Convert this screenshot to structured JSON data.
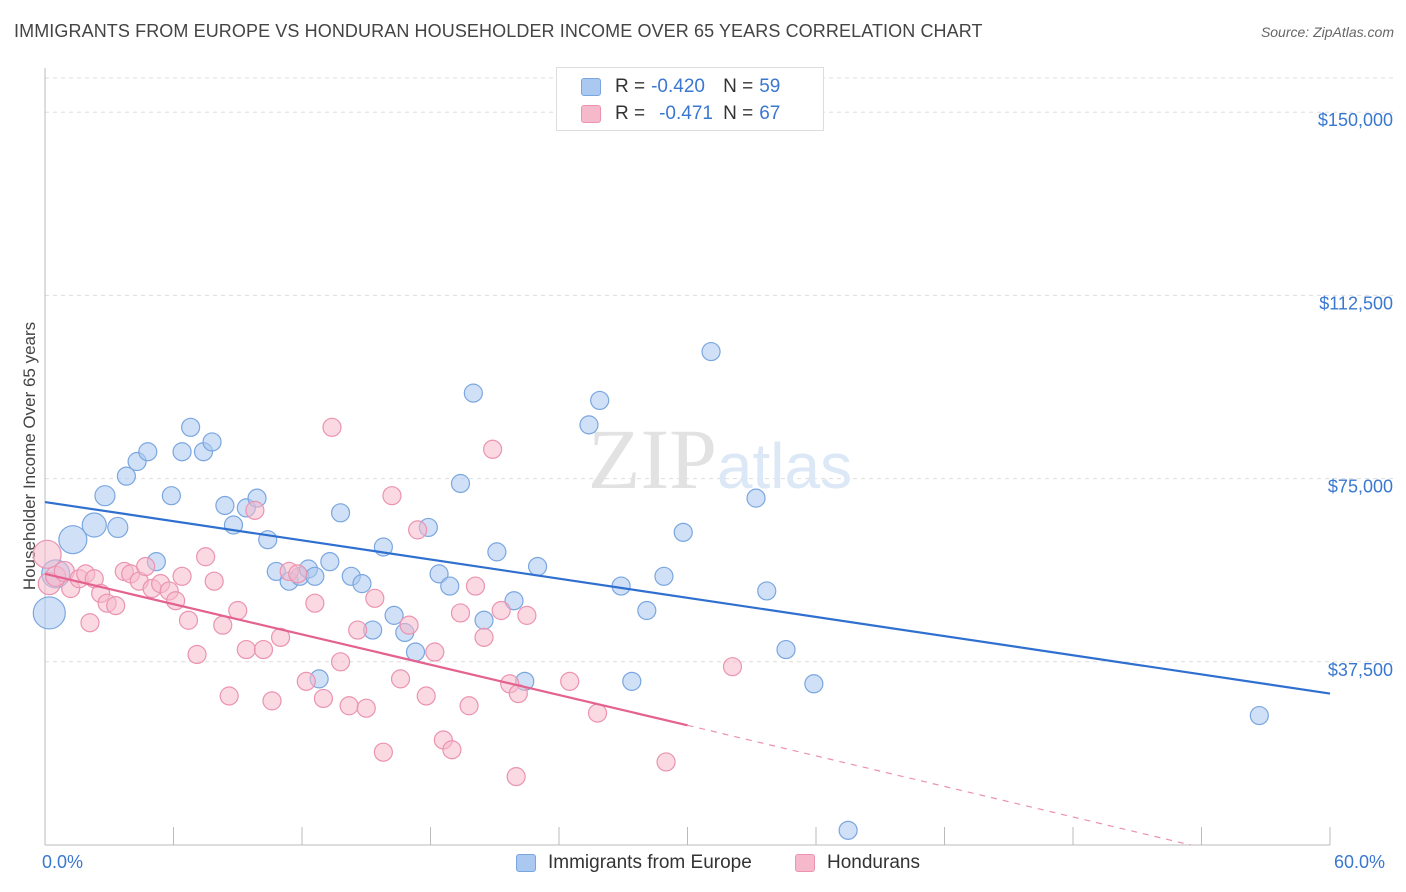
{
  "chart_title": "IMMIGRANTS FROM EUROPE VS HONDURAN HOUSEHOLDER INCOME OVER 65 YEARS CORRELATION CHART",
  "source_text": "Source: ZipAtlas.com",
  "watermark": "ZIPatlas",
  "legend_stats": [
    {
      "r_label": "R =",
      "r_value": "-0.420",
      "n_label": "N =",
      "n_value": "59"
    },
    {
      "r_label": "R =",
      "r_value": "-0.471",
      "n_label": "N =",
      "n_value": "67"
    }
  ],
  "colors": {
    "europe_fill": "#aac8f0",
    "europe_stroke": "#7aa6e0",
    "europe_line": "#2f6fcf",
    "honduran_fill": "#f6b9cc",
    "honduran_stroke": "#eb93b0",
    "honduran_line": "#e4628f",
    "tick_label": "#3a78d0",
    "grid": "#dddddd"
  },
  "chart_data": {
    "type": "scatter",
    "title": "IMMIGRANTS FROM EUROPE VS HONDURAN HOUSEHOLDER INCOME OVER 65 YEARS CORRELATION CHART",
    "xlabel": "",
    "ylabel": "Householder Income Over 65 years",
    "xlim": [
      0,
      60
    ],
    "ylim": [
      0,
      157000
    ],
    "x_tick_labels": [
      "0.0%",
      "60.0%"
    ],
    "y_ticks": [
      37500,
      75000,
      112500,
      150000
    ],
    "y_tick_labels": [
      "$37,500",
      "$75,000",
      "$112,500",
      "$150,000"
    ],
    "grid": true,
    "legend_position": "top-center",
    "series": [
      {
        "name": "Immigrants from Europe",
        "trend": {
          "x": [
            0,
            60
          ],
          "y": [
            70200,
            31000
          ]
        },
        "points": [
          [
            0.2,
            47500,
            16
          ],
          [
            0.5,
            55500,
            14
          ],
          [
            1.3,
            62500,
            14
          ],
          [
            2.3,
            65500,
            12
          ],
          [
            2.8,
            71500,
            10
          ],
          [
            3.4,
            65000,
            10
          ],
          [
            3.8,
            75500,
            9
          ],
          [
            4.3,
            78500,
            9
          ],
          [
            4.8,
            80500,
            9
          ],
          [
            5.2,
            58000,
            9
          ],
          [
            5.9,
            71500,
            9
          ],
          [
            6.4,
            80500,
            9
          ],
          [
            6.8,
            85500,
            9
          ],
          [
            7.4,
            80500,
            9
          ],
          [
            7.8,
            82500,
            9
          ],
          [
            8.4,
            69500,
            9
          ],
          [
            8.8,
            65500,
            9
          ],
          [
            9.4,
            69000,
            9
          ],
          [
            9.9,
            71000,
            9
          ],
          [
            10.4,
            62500,
            9
          ],
          [
            10.8,
            56000,
            9
          ],
          [
            11.4,
            54000,
            9
          ],
          [
            11.9,
            55000,
            9
          ],
          [
            12.3,
            56500,
            9
          ],
          [
            12.8,
            34000,
            9
          ],
          [
            13.3,
            58000,
            9
          ],
          [
            13.8,
            68000,
            9
          ],
          [
            14.3,
            55000,
            9
          ],
          [
            14.8,
            53500,
            9
          ],
          [
            15.3,
            44000,
            9
          ],
          [
            15.8,
            61000,
            9
          ],
          [
            16.3,
            47000,
            9
          ],
          [
            16.8,
            43500,
            9
          ],
          [
            17.3,
            39500,
            9
          ],
          [
            17.9,
            65000,
            9
          ],
          [
            18.4,
            55500,
            9
          ],
          [
            18.9,
            53000,
            9
          ],
          [
            19.4,
            74000,
            9
          ],
          [
            20.0,
            92500,
            9
          ],
          [
            20.5,
            46000,
            9
          ],
          [
            21.1,
            60000,
            9
          ],
          [
            21.9,
            50000,
            9
          ],
          [
            22.4,
            33500,
            9
          ],
          [
            23.0,
            57000,
            9
          ],
          [
            25.4,
            86000,
            9
          ],
          [
            25.9,
            91000,
            9
          ],
          [
            26.9,
            53000,
            9
          ],
          [
            27.4,
            33500,
            9
          ],
          [
            28.1,
            48000,
            9
          ],
          [
            28.9,
            55000,
            9
          ],
          [
            29.8,
            64000,
            9
          ],
          [
            31.1,
            101000,
            9
          ],
          [
            33.2,
            71000,
            9
          ],
          [
            33.7,
            52000,
            9
          ],
          [
            34.6,
            40000,
            9
          ],
          [
            35.9,
            33000,
            9
          ],
          [
            37.5,
            3000,
            9
          ],
          [
            56.7,
            26500,
            9
          ],
          [
            12.6,
            55000,
            9
          ]
        ]
      },
      {
        "name": "Hondurans",
        "trend": {
          "x": [
            0,
            30
          ],
          "y": [
            55500,
            24500
          ]
        },
        "trend_dashed": {
          "x": [
            30,
            53.5
          ],
          "y": [
            24500,
            0
          ]
        },
        "points": [
          [
            0.1,
            59500,
            14
          ],
          [
            0.2,
            53500,
            11
          ],
          [
            0.5,
            55000,
            10
          ],
          [
            0.9,
            56000,
            10
          ],
          [
            1.2,
            52500,
            9
          ],
          [
            1.6,
            54500,
            9
          ],
          [
            1.9,
            55500,
            9
          ],
          [
            2.3,
            54500,
            9
          ],
          [
            2.6,
            51500,
            9
          ],
          [
            2.9,
            49500,
            9
          ],
          [
            3.3,
            49000,
            9
          ],
          [
            3.7,
            56000,
            9
          ],
          [
            4.0,
            55500,
            9
          ],
          [
            4.4,
            54000,
            9
          ],
          [
            4.7,
            57000,
            9
          ],
          [
            5.0,
            52500,
            9
          ],
          [
            5.4,
            53500,
            9
          ],
          [
            5.8,
            52000,
            9
          ],
          [
            6.1,
            50000,
            9
          ],
          [
            6.4,
            55000,
            9
          ],
          [
            6.7,
            46000,
            9
          ],
          [
            7.1,
            39000,
            9
          ],
          [
            7.5,
            59000,
            9
          ],
          [
            7.9,
            54000,
            9
          ],
          [
            8.3,
            45000,
            9
          ],
          [
            8.6,
            30500,
            9
          ],
          [
            9.0,
            48000,
            9
          ],
          [
            9.4,
            40000,
            9
          ],
          [
            9.8,
            68500,
            9
          ],
          [
            10.2,
            40000,
            9
          ],
          [
            10.6,
            29500,
            9
          ],
          [
            11.0,
            42500,
            9
          ],
          [
            11.4,
            56000,
            9
          ],
          [
            11.8,
            55500,
            9
          ],
          [
            12.2,
            33500,
            9
          ],
          [
            12.6,
            49500,
            9
          ],
          [
            13.0,
            30000,
            9
          ],
          [
            13.4,
            85500,
            9
          ],
          [
            13.8,
            37500,
            9
          ],
          [
            14.2,
            28500,
            9
          ],
          [
            14.6,
            44000,
            9
          ],
          [
            15.0,
            28000,
            9
          ],
          [
            15.4,
            50500,
            9
          ],
          [
            15.8,
            19000,
            9
          ],
          [
            16.2,
            71500,
            9
          ],
          [
            16.6,
            34000,
            9
          ],
          [
            17.0,
            45000,
            9
          ],
          [
            17.4,
            64500,
            9
          ],
          [
            17.8,
            30500,
            9
          ],
          [
            18.2,
            39500,
            9
          ],
          [
            18.6,
            21500,
            9
          ],
          [
            19.0,
            19500,
            9
          ],
          [
            19.4,
            47500,
            9
          ],
          [
            19.8,
            28500,
            9
          ],
          [
            20.1,
            53000,
            9
          ],
          [
            20.5,
            42500,
            9
          ],
          [
            20.9,
            81000,
            9
          ],
          [
            21.3,
            48000,
            9
          ],
          [
            21.7,
            33000,
            9
          ],
          [
            22.1,
            31000,
            9
          ],
          [
            22.5,
            47000,
            9
          ],
          [
            22.0,
            14000,
            9
          ],
          [
            24.5,
            33500,
            9
          ],
          [
            25.8,
            27000,
            9
          ],
          [
            29.0,
            17000,
            9
          ],
          [
            32.1,
            36500,
            9
          ],
          [
            2.1,
            45500,
            9
          ]
        ]
      }
    ]
  }
}
